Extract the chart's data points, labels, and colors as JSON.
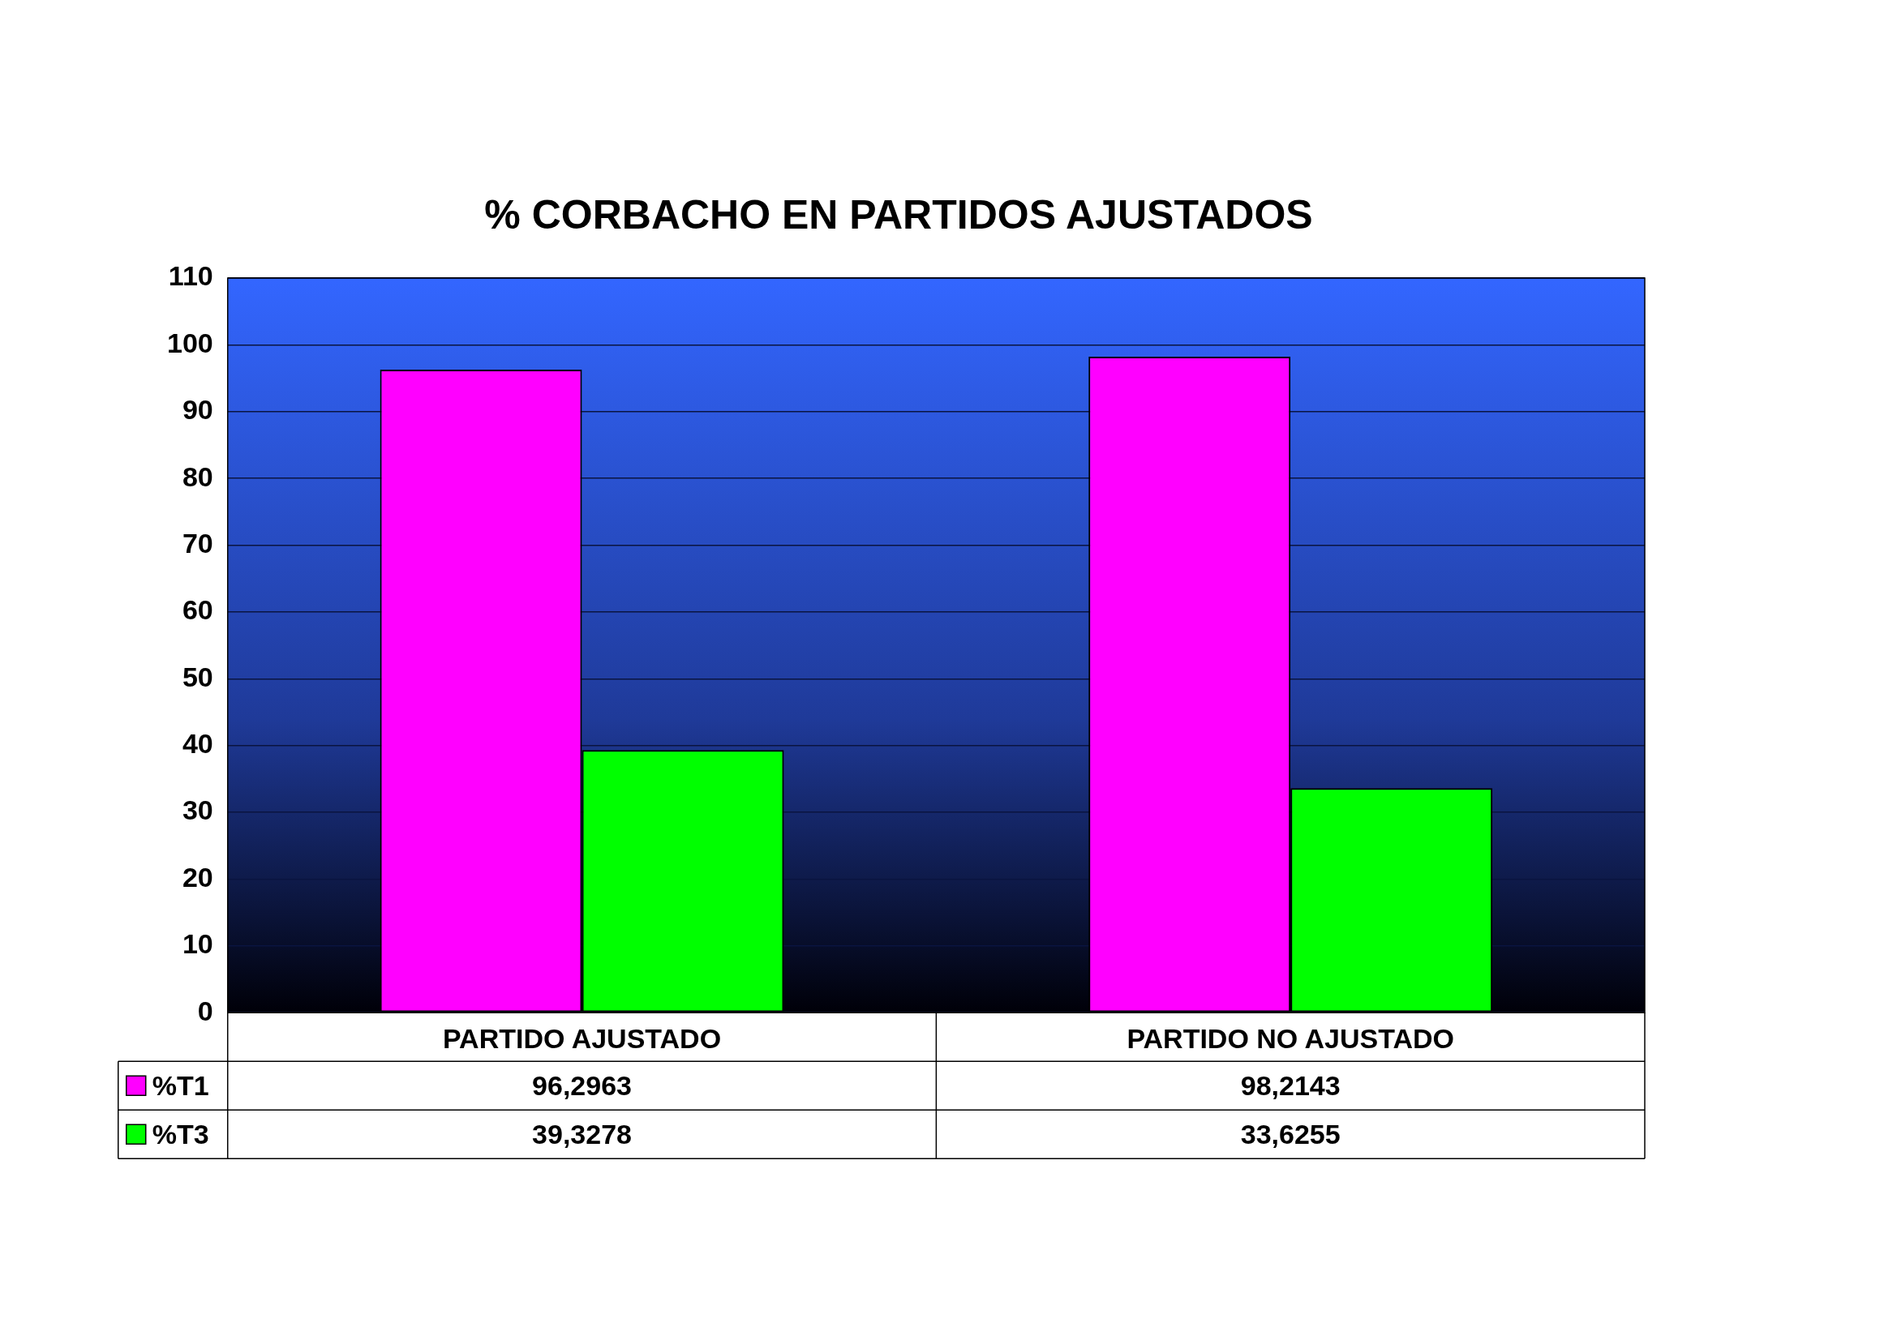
{
  "chart_data": {
    "type": "bar",
    "title": "% CORBACHO EN PARTIDOS AJUSTADOS",
    "categories": [
      "PARTIDO AJUSTADO",
      "PARTIDO NO AJUSTADO"
    ],
    "series": [
      {
        "name": "%T1",
        "color": "#ff00ff",
        "values": [
          96.2963,
          98.2143
        ],
        "value_labels": [
          "96,2963",
          "98,2143"
        ]
      },
      {
        "name": "%T3",
        "color": "#00ff00",
        "values": [
          39.3278,
          33.6255
        ],
        "value_labels": [
          "39,3278",
          "33,6255"
        ]
      }
    ],
    "ylim": [
      0,
      110
    ],
    "yticks": [
      0,
      10,
      20,
      30,
      40,
      50,
      60,
      70,
      80,
      90,
      100,
      110
    ],
    "grid": "y",
    "legend": "bottom left"
  }
}
